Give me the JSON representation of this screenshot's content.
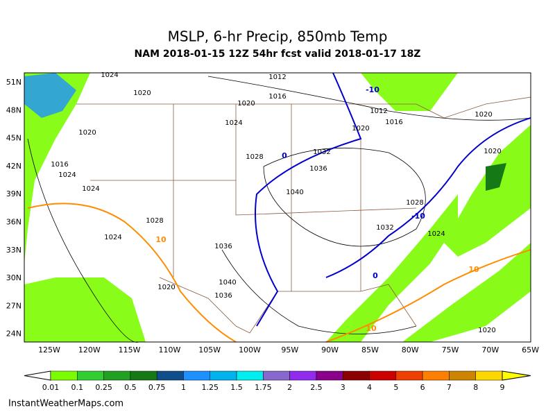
{
  "header": {
    "title": "MSLP, 6-hr Precip, 850mb Temp",
    "subtitle": "NAM 2018-01-15 12Z 54hr fcst valid 2018-01-17 18Z"
  },
  "map": {
    "lat_labels": [
      "51N",
      "48N",
      "45N",
      "42N",
      "39N",
      "36N",
      "33N",
      "30N",
      "27N",
      "24N"
    ],
    "lon_labels": [
      "125W",
      "120W",
      "115W",
      "110W",
      "105W",
      "100W",
      "95W",
      "90W",
      "85W",
      "80W",
      "75W",
      "70W",
      "65W"
    ],
    "isobar_labels": [
      "1024",
      "1012",
      "1020",
      "1016",
      "1020",
      "1024",
      "1020",
      "1016",
      "1012",
      "1032",
      "1028",
      "1036",
      "1040",
      "1028",
      "1032",
      "1024",
      "1036",
      "1040",
      "1036",
      "1020",
      "1020",
      "1020",
      "1024",
      "1028",
      "1016",
      "1024",
      "1024",
      "1020",
      "1020"
    ],
    "isotherm_labels": [
      "-10",
      "-10",
      "0",
      "0",
      "10",
      "10",
      "10"
    ]
  },
  "colorbar": {
    "labels": [
      "0.01",
      "0.1",
      "0.25",
      "0.5",
      "0.75",
      "1",
      "1.25",
      "1.5",
      "1.75",
      "2",
      "2.5",
      "3",
      "4",
      "5",
      "6",
      "7",
      "8",
      "9"
    ],
    "colors": [
      "#7cfc00",
      "#32cd32",
      "#22a022",
      "#157a15",
      "#104e8b",
      "#1e90ff",
      "#00b2ee",
      "#00eeee",
      "#8968cd",
      "#912cee",
      "#8b008b",
      "#8b0000",
      "#cd0000",
      "#ee4000",
      "#ff7f00",
      "#cd8500",
      "#ffd700",
      "#ffff00"
    ]
  },
  "footer": {
    "credit": "InstantWeatherMaps.com"
  }
}
